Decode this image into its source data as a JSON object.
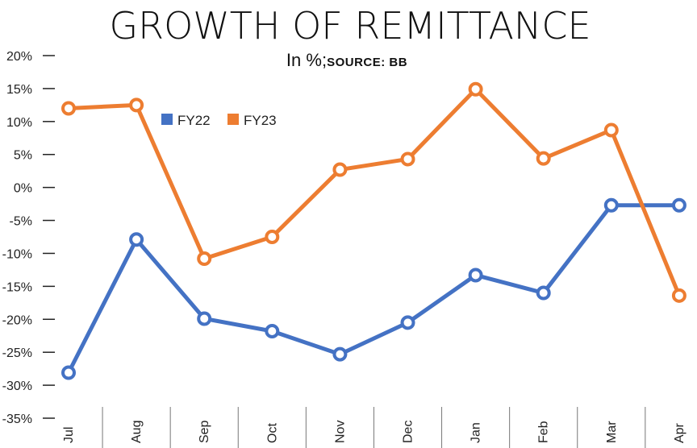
{
  "chart_data": {
    "type": "line",
    "title": "GROWTH OF REMITTANCE",
    "subtitle": "In %;",
    "source": "SOURCE: BB",
    "categories": [
      "Jul",
      "Aug",
      "Sep",
      "Oct",
      "Nov",
      "Dec",
      "Jan",
      "Feb",
      "Mar",
      "Apr"
    ],
    "yticks": [
      "20%",
      "15%",
      "10%",
      "5%",
      "0%",
      "-5%",
      "-10%",
      "-15%",
      "-20%",
      "-25%",
      "-30%",
      "-35%"
    ],
    "ylim": [
      -35,
      20
    ],
    "xlabel": "",
    "ylabel": "",
    "legend_position": "top-left",
    "series": [
      {
        "name": "FY22",
        "color": "#4472c4",
        "values": [
          -28.1,
          -7.9,
          -19.9,
          -21.8,
          -25.3,
          -20.5,
          -13.3,
          -16.0,
          -2.7,
          -2.7
        ]
      },
      {
        "name": "FY23",
        "color": "#ed7d31",
        "values": [
          12.0,
          12.5,
          -10.8,
          -7.5,
          2.7,
          4.3,
          14.9,
          4.4,
          8.7,
          -16.4
        ]
      }
    ]
  }
}
